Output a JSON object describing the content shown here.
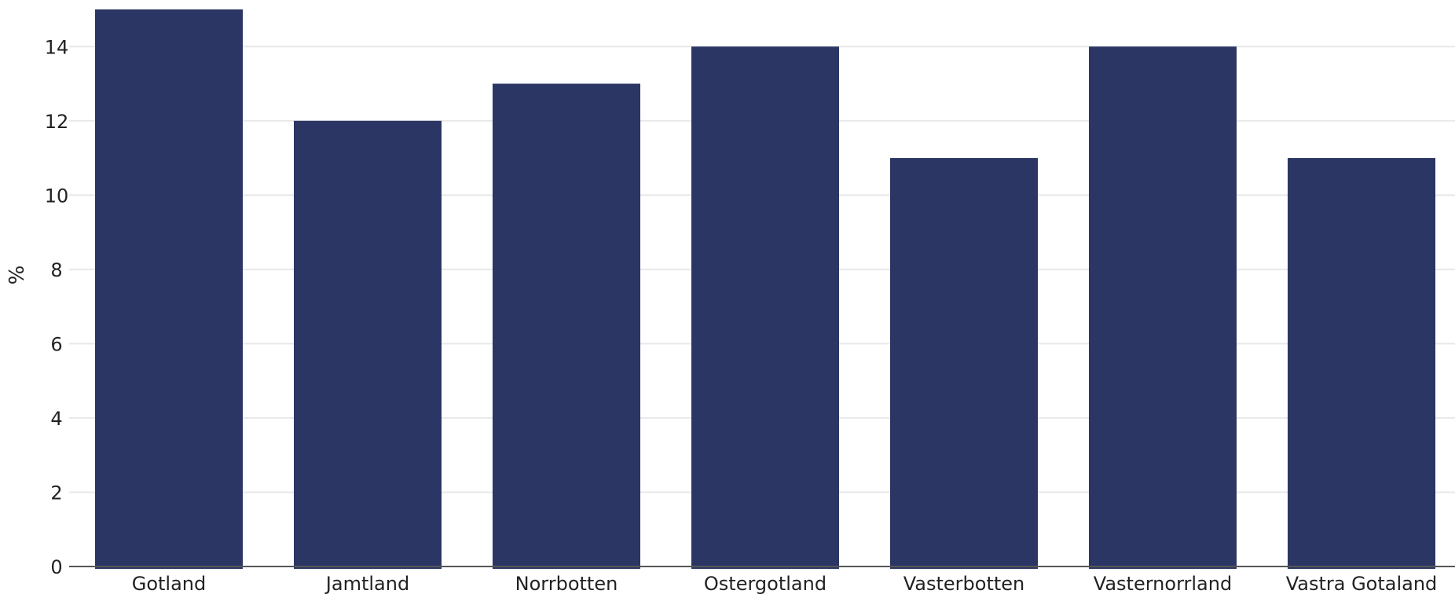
{
  "chart_data": {
    "type": "bar",
    "categories": [
      "Gotland",
      "Jamtland",
      "Norrbotten",
      "Ostergotland",
      "Vasterbotten",
      "Vasternorrland",
      "Vastra Gotaland"
    ],
    "values": [
      15,
      12,
      13,
      14,
      11,
      14,
      11
    ],
    "ylabel": "%",
    "xlabel": "",
    "ylim": [
      0,
      15
    ],
    "yticks": [
      0,
      2,
      4,
      6,
      8,
      10,
      12,
      14
    ],
    "grid": true,
    "legend": "none",
    "bar_color": "#2b3664"
  }
}
